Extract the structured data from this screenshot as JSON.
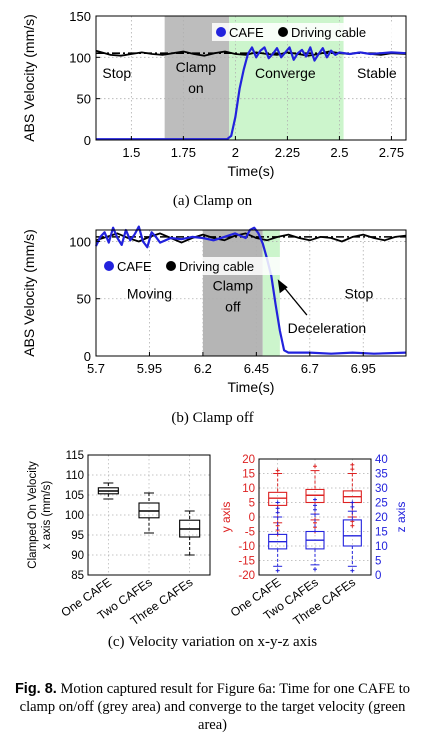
{
  "chart_data": [
    {
      "type": "line",
      "caption": "(a) Clamp on",
      "xlabel": "Time(s)",
      "ylabel": "ABS Velocity (mm/s)",
      "xlim": [
        1.33,
        2.82
      ],
      "ylim": [
        0,
        150
      ],
      "xticks": [
        "1.5",
        "1.75",
        "2",
        "2.25",
        "2.5",
        "2.75"
      ],
      "xtick_values": [
        1.5,
        1.75,
        2,
        2.25,
        2.5,
        2.75
      ],
      "yticks": [
        "0",
        "50",
        "100",
        "150"
      ],
      "ytick_values": [
        0,
        50,
        100,
        150
      ],
      "target_velocity": 105,
      "shaded_regions": [
        {
          "label": "Clamp on",
          "from": 1.66,
          "to": 1.97,
          "color": "#bdbdbd"
        },
        {
          "label": "Converge",
          "from": 1.97,
          "to": 2.52,
          "color": "#ccf5cc"
        }
      ],
      "phase_labels": [
        {
          "line1": "Stop",
          "line2": "",
          "x": 1.43,
          "y": 75
        },
        {
          "line1": "Clamp",
          "line2": "on",
          "x": 1.81,
          "y": 82
        },
        {
          "line1": "Converge",
          "line2": "",
          "x": 2.24,
          "y": 75
        },
        {
          "line1": "Stable",
          "line2": "",
          "x": 2.68,
          "y": 75
        }
      ],
      "legend": [
        "CAFE",
        "Driving cable"
      ],
      "legend_position": "top-right",
      "series": [
        {
          "name": "CAFE",
          "color": "#2222dd",
          "x": [
            1.33,
            1.5,
            1.7,
            1.9,
            1.96,
            1.98,
            2.0,
            2.02,
            2.04,
            2.06,
            2.08,
            2.1,
            2.12,
            2.14,
            2.16,
            2.18,
            2.2,
            2.22,
            2.24,
            2.26,
            2.28,
            2.3,
            2.32,
            2.34,
            2.36,
            2.38,
            2.4,
            2.42,
            2.44,
            2.46,
            2.48,
            2.5,
            2.55,
            2.6,
            2.65,
            2.7,
            2.75,
            2.82
          ],
          "y": [
            1,
            1,
            1,
            1,
            1,
            5,
            28,
            62,
            85,
            104,
            112,
            100,
            108,
            112,
            99,
            104,
            111,
            100,
            106,
            112,
            97,
            105,
            109,
            101,
            112,
            96,
            104,
            111,
            100,
            108,
            103,
            106,
            104,
            106,
            104,
            105,
            106,
            105
          ]
        },
        {
          "name": "Driving cable",
          "color": "#000000",
          "x": [
            1.33,
            1.4,
            1.45,
            1.5,
            1.55,
            1.6,
            1.65,
            1.7,
            1.75,
            1.8,
            1.85,
            1.9,
            1.95,
            2.0,
            2.05,
            2.1,
            2.15,
            2.2,
            2.25,
            2.3,
            2.35,
            2.4,
            2.45,
            2.5,
            2.55,
            2.6,
            2.65,
            2.7,
            2.75,
            2.82
          ],
          "y": [
            108,
            103,
            102,
            104,
            106,
            104,
            103,
            105,
            107,
            104,
            102,
            105,
            107,
            104,
            103,
            106,
            104,
            103,
            106,
            104,
            102,
            104,
            107,
            105,
            104,
            106,
            104,
            103,
            105,
            104
          ]
        }
      ]
    },
    {
      "type": "line",
      "caption": "(b) Clamp off",
      "xlabel": "Time(s)",
      "ylabel": "ABS Velocity (mm/s)",
      "xlim": [
        5.7,
        7.15
      ],
      "ylim": [
        0,
        110
      ],
      "xticks": [
        "5.7",
        "5.95",
        "6.2",
        "6.45",
        "6.7",
        "6.95"
      ],
      "xtick_values": [
        5.7,
        5.95,
        6.2,
        6.45,
        6.7,
        6.95
      ],
      "yticks": [
        "0",
        "50",
        "100"
      ],
      "ytick_values": [
        0,
        50,
        100
      ],
      "target_velocity": 104,
      "shaded_regions": [
        {
          "label": "Clamp off",
          "from": 6.2,
          "to": 6.48,
          "color": "#b5b5b5"
        },
        {
          "label": "",
          "from": 6.48,
          "to": 6.56,
          "color": "#ccf5cc"
        }
      ],
      "phase_labels": [
        {
          "line1": "Moving",
          "line2": "",
          "x": 5.95,
          "y": 50
        },
        {
          "line1": "Clamp",
          "line2": "off",
          "x": 6.34,
          "y": 57
        },
        {
          "line1": "Stop",
          "line2": "",
          "x": 6.93,
          "y": 50
        }
      ],
      "annotations": [
        {
          "text": "Deceleration",
          "x": 6.78,
          "y": 20,
          "arrow_to_x": 6.55,
          "arrow_to_y": 67
        }
      ],
      "legend": [
        "CAFE",
        "Driving cable"
      ],
      "legend_position": "middle-left",
      "series": [
        {
          "name": "CAFE",
          "color": "#2222dd",
          "x": [
            5.7,
            5.72,
            5.74,
            5.76,
            5.78,
            5.8,
            5.82,
            5.84,
            5.86,
            5.88,
            5.9,
            5.92,
            5.94,
            5.96,
            5.98,
            6.0,
            6.05,
            6.1,
            6.15,
            6.2,
            6.25,
            6.3,
            6.35,
            6.4,
            6.42,
            6.44,
            6.46,
            6.48,
            6.5,
            6.52,
            6.54,
            6.56,
            6.58,
            6.6,
            6.7,
            6.8,
            6.9,
            7.0,
            7.15
          ],
          "y": [
            96,
            104,
            108,
            99,
            112,
            103,
            97,
            110,
            101,
            106,
            113,
            100,
            95,
            108,
            104,
            99,
            103,
            102,
            104,
            103,
            101,
            104,
            107,
            103,
            110,
            112,
            107,
            98,
            85,
            70,
            45,
            22,
            5,
            3,
            3,
            2,
            3,
            2,
            3
          ]
        },
        {
          "name": "Driving cable",
          "color": "#000000",
          "x": [
            5.7,
            5.75,
            5.8,
            5.85,
            5.9,
            5.95,
            6.0,
            6.05,
            6.1,
            6.15,
            6.2,
            6.25,
            6.3,
            6.35,
            6.4,
            6.45,
            6.5,
            6.55,
            6.6,
            6.65,
            6.7,
            6.75,
            6.8,
            6.85,
            6.9,
            6.95,
            7.0,
            7.05,
            7.1,
            7.15
          ],
          "y": [
            101,
            104,
            107,
            103,
            100,
            104,
            107,
            103,
            99,
            103,
            106,
            103,
            101,
            105,
            107,
            103,
            101,
            104,
            106,
            103,
            101,
            104,
            103,
            100,
            104,
            106,
            103,
            101,
            104,
            105
          ]
        }
      ]
    },
    {
      "type": "box",
      "ylabel": "Clamped On Velocity x axis (mm/s)",
      "ylim": [
        85,
        115
      ],
      "yticks": [
        "85",
        "90",
        "95",
        "100",
        "105",
        "110",
        "115"
      ],
      "ytick_values": [
        85,
        90,
        95,
        100,
        105,
        110,
        115
      ],
      "categories": [
        "One CAFE",
        "Two CAFEs",
        "Three CAFEs"
      ],
      "color": "#000000",
      "boxes": [
        {
          "whisker_low": 104,
          "q1": 105.3,
          "median": 106,
          "q3": 106.8,
          "whisker_high": 108
        },
        {
          "whisker_low": 95.5,
          "q1": 99.3,
          "median": 101,
          "q3": 103,
          "whisker_high": 105.5
        },
        {
          "whisker_low": 90,
          "q1": 94.5,
          "median": 96.5,
          "q3": 98.7,
          "whisker_high": 101
        }
      ]
    },
    {
      "type": "box",
      "left_axis": {
        "label": "y axis",
        "color": "#dd2222",
        "lim": [
          -20,
          20
        ],
        "ticks": [
          "-20",
          "-15",
          "-10",
          "-5",
          "0",
          "5",
          "10",
          "15",
          "20"
        ],
        "tick_values": [
          -20,
          -15,
          -10,
          -5,
          0,
          5,
          10,
          15,
          20
        ]
      },
      "right_axis": {
        "label": "z axis",
        "color": "#2222dd",
        "lim": [
          0,
          40
        ],
        "ticks": [
          "0",
          "5",
          "10",
          "15",
          "20",
          "25",
          "30",
          "35",
          "40"
        ],
        "tick_values": [
          0,
          5,
          10,
          15,
          20,
          25,
          30,
          35,
          40
        ]
      },
      "categories": [
        "One CAFE",
        "Two CAFEs",
        "Three CAFEs"
      ],
      "series": [
        {
          "name": "y axis",
          "color": "#dd2222",
          "axis": "left",
          "boxes": [
            {
              "whisker_low": -2,
              "q1": 4,
              "median": 6.5,
              "q3": 8.5,
              "whisker_high": 15,
              "outliers": [
                -3,
                -4.5,
                -6,
                16
              ]
            },
            {
              "whisker_low": -1,
              "q1": 5,
              "median": 7.5,
              "q3": 9.5,
              "whisker_high": 16,
              "outliers": [
                -2,
                -3.5,
                -5,
                17.5
              ]
            },
            {
              "whisker_low": 0,
              "q1": 5,
              "median": 7,
              "q3": 9,
              "whisker_high": 15,
              "outliers": [
                -1.5,
                -3,
                16.5,
                18
              ]
            }
          ]
        },
        {
          "name": "z axis",
          "color": "#2222dd",
          "axis": "right",
          "boxes": [
            {
              "whisker_low": 3,
              "q1": 9,
              "median": 11.5,
              "q3": 14,
              "whisker_high": 20,
              "outliers": [
                21.5,
                23,
                25,
                1.5
              ]
            },
            {
              "whisker_low": 3.5,
              "q1": 9,
              "median": 12,
              "q3": 15,
              "whisker_high": 21,
              "outliers": [
                22.5,
                24,
                26,
                2
              ]
            },
            {
              "whisker_low": 3,
              "q1": 10,
              "median": 13.5,
              "q3": 19,
              "whisker_high": 22,
              "outliers": [
                23.5,
                25,
                1.5
              ]
            }
          ]
        }
      ]
    }
  ],
  "caption_c": "(c) Velocity variation on x-y-z axis",
  "figure_caption": {
    "label": "Fig. 8.",
    "text": "Motion captured result for Figure 6a: Time for one CAFE to clamp on/off (grey area) and converge to the target velocity (green area)"
  }
}
